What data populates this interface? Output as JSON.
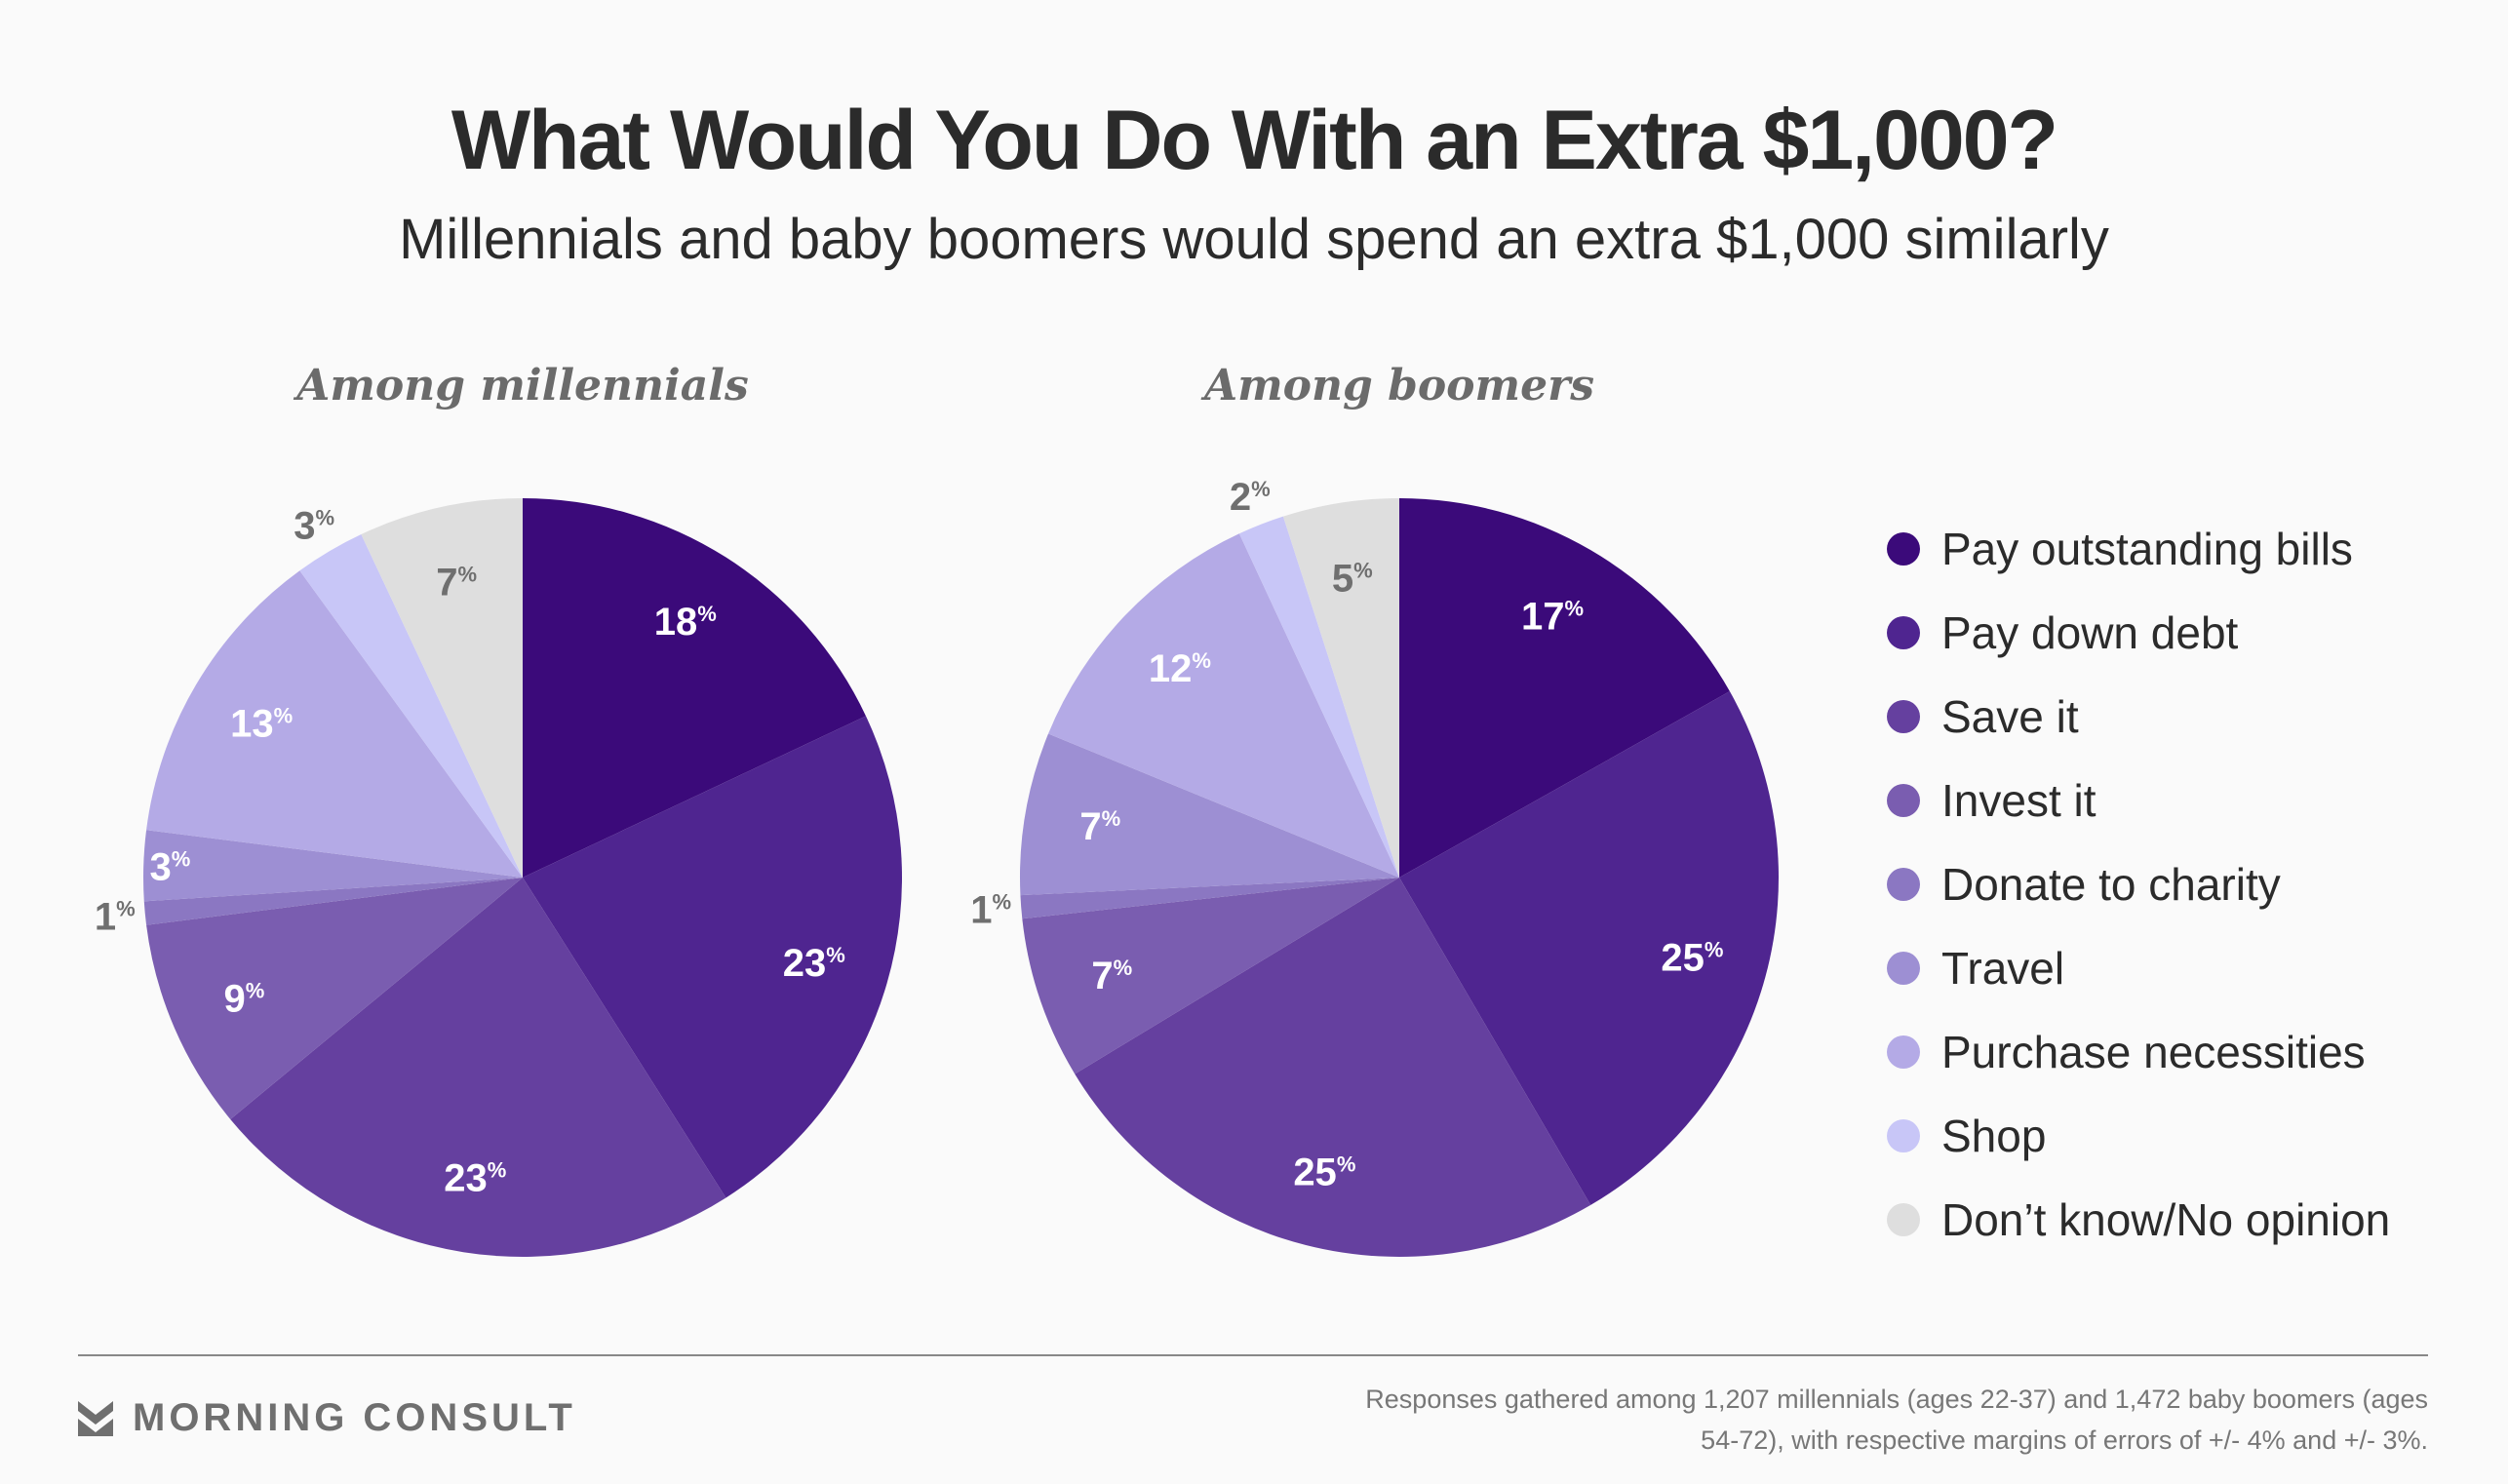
{
  "title": "What Would You Do With an Extra $1,000?",
  "subtitle": "Millennials and baby boomers would spend an extra $1,000 similarly",
  "chart_data": {
    "type": "pie",
    "categories": [
      "Pay outstanding bills",
      "Pay down debt",
      "Save it",
      "Invest it",
      "Donate to charity",
      "Travel",
      "Purchase necessities",
      "Shop",
      "Don’t know/No opinion"
    ],
    "colors": [
      "#3b0a7a",
      "#4f2590",
      "#65409f",
      "#7a5db0",
      "#8b77c2",
      "#9d8fd3",
      "#b4aae6",
      "#c8c6f7",
      "#dedede"
    ],
    "series": [
      {
        "name": "Among millennials",
        "values": [
          18,
          23,
          23,
          9,
          1,
          3,
          13,
          3,
          7
        ]
      },
      {
        "name": "Among boomers",
        "values": [
          17,
          25,
          25,
          7,
          1,
          7,
          12,
          2,
          5
        ]
      }
    ],
    "value_suffix": "%",
    "legend_placement": "right"
  },
  "footer": {
    "brand": "MORNING CONSULT",
    "note": "Responses gathered among 1,207 millennials (ages 22-37) and 1,472 baby boomers (ages 54-72), with respective margins of errors of +/- 4% and +/- 3%."
  }
}
